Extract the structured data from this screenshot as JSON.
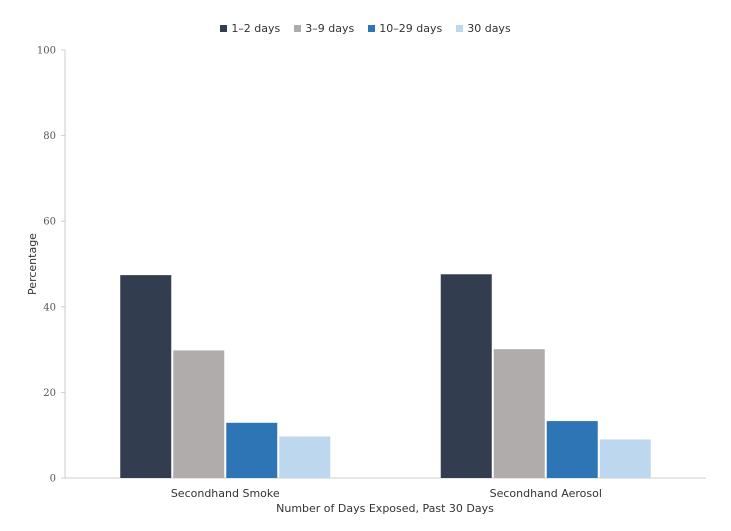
{
  "chart_data": {
    "type": "bar",
    "categories": [
      "Secondhand Smoke",
      "Secondhand Aerosol"
    ],
    "series": [
      {
        "name": "1–2 days",
        "color": "#323d4f",
        "values": [
          47.4,
          47.6
        ]
      },
      {
        "name": "3–9 days",
        "color": "#b0acab",
        "values": [
          29.8,
          30.1
        ]
      },
      {
        "name": "10–29 days",
        "color": "#2e75b6",
        "values": [
          12.9,
          13.3
        ]
      },
      {
        "name": "30 days",
        "color": "#bdd7ee",
        "values": [
          9.7,
          9.0
        ]
      }
    ],
    "xlabel": "Number of Days Exposed, Past 30 Days",
    "ylabel": "Percentage",
    "ylim": [
      0,
      100
    ],
    "yticks": [
      0,
      20,
      40,
      60,
      80,
      100
    ],
    "grid": false,
    "legend_position": "top-center"
  }
}
